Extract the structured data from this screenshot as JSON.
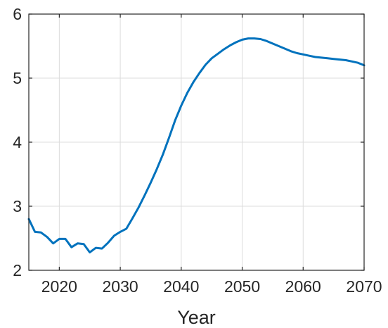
{
  "chart_data": {
    "type": "line",
    "title": "",
    "xlabel": "Year",
    "ylabel": "",
    "xlim": [
      2015,
      2070
    ],
    "ylim": [
      2,
      6
    ],
    "xticks": [
      2020,
      2030,
      2040,
      2050,
      2060,
      2070
    ],
    "yticks": [
      2,
      3,
      4,
      5,
      6
    ],
    "grid": true,
    "series_color": "#0072bd",
    "series": [
      {
        "x": [
          2015,
          2016,
          2017,
          2018,
          2019,
          2020,
          2021,
          2022,
          2023,
          2024,
          2025,
          2026,
          2027,
          2028,
          2029,
          2030,
          2031,
          2032,
          2033,
          2034,
          2035,
          2036,
          2037,
          2038,
          2039,
          2040,
          2041,
          2042,
          2043,
          2044,
          2045,
          2046,
          2047,
          2048,
          2049,
          2050,
          2051,
          2052,
          2053,
          2054,
          2055,
          2056,
          2057,
          2058,
          2059,
          2060,
          2061,
          2062,
          2063,
          2064,
          2065,
          2066,
          2067,
          2068,
          2069,
          2070
        ],
        "values": [
          2.8,
          2.6,
          2.59,
          2.52,
          2.42,
          2.49,
          2.49,
          2.36,
          2.42,
          2.41,
          2.28,
          2.35,
          2.34,
          2.43,
          2.54,
          2.6,
          2.65,
          2.81,
          2.98,
          3.17,
          3.37,
          3.58,
          3.81,
          4.07,
          4.34,
          4.57,
          4.77,
          4.94,
          5.08,
          5.21,
          5.31,
          5.38,
          5.45,
          5.51,
          5.56,
          5.6,
          5.62,
          5.62,
          5.61,
          5.58,
          5.54,
          5.5,
          5.46,
          5.42,
          5.39,
          5.37,
          5.35,
          5.33,
          5.32,
          5.31,
          5.3,
          5.29,
          5.28,
          5.26,
          5.24,
          5.2
        ]
      }
    ]
  }
}
